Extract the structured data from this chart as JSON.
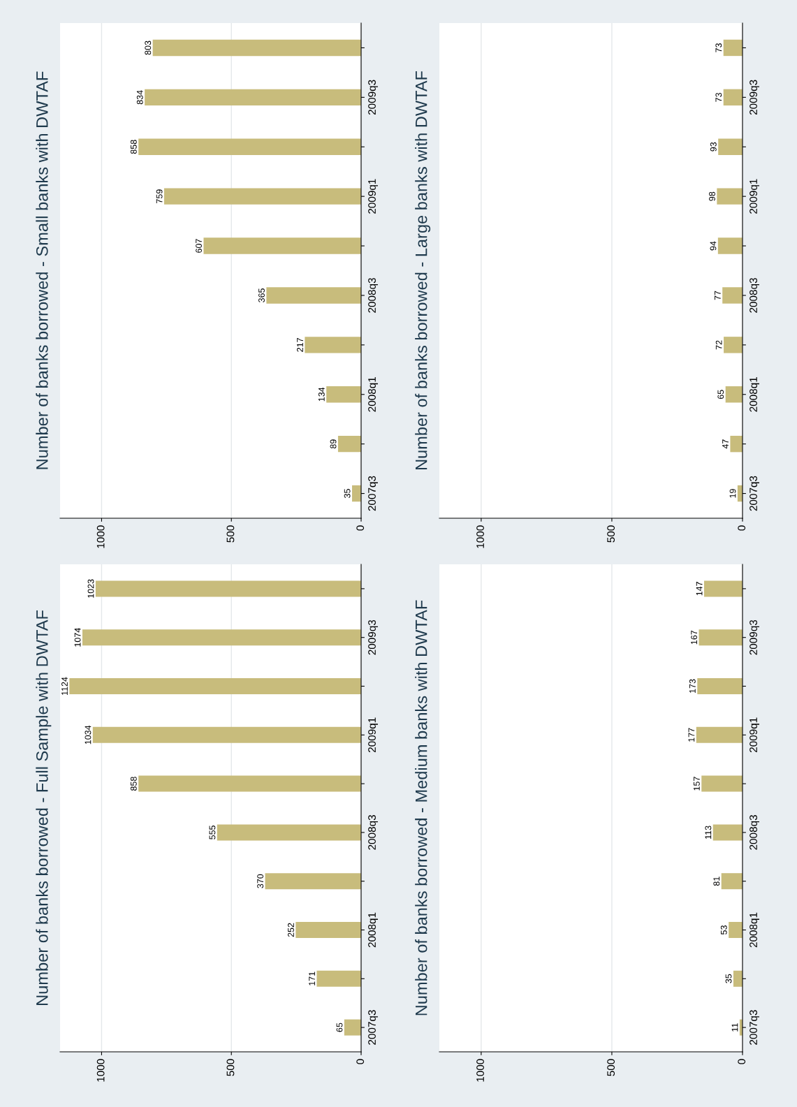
{
  "chart_data": [
    {
      "type": "bar",
      "orientation": "horizontal",
      "title": "Number of banks borrowed - Full Sample with DWTAF",
      "categories": [
        null,
        "2009q3",
        null,
        "2009q1",
        null,
        "2008q3",
        null,
        "2008q1",
        null,
        "2007q3"
      ],
      "values": [
        1023,
        1074,
        1124,
        1034,
        858,
        555,
        370,
        252,
        171,
        65
      ],
      "color": "#c8bc7c",
      "xlim": [
        1160,
        0
      ],
      "xticks": [
        0,
        500,
        1000
      ],
      "grid": "x",
      "data_labels": true
    },
    {
      "type": "bar",
      "orientation": "horizontal",
      "title": "Number of banks borrowed - Small banks with DWTAF",
      "categories": [
        null,
        "2009q3",
        null,
        "2009q1",
        null,
        "2008q3",
        null,
        "2008q1",
        null,
        "2007q3"
      ],
      "values": [
        803,
        834,
        858,
        759,
        607,
        365,
        217,
        134,
        89,
        35
      ],
      "color": "#c8bc7c",
      "xlim": [
        1160,
        0
      ],
      "xticks": [
        0,
        500,
        1000
      ],
      "grid": "x",
      "data_labels": true
    },
    {
      "type": "bar",
      "orientation": "horizontal",
      "title": "Number of banks borrowed - Medium banks with DWTAF",
      "categories": [
        null,
        "2009q3",
        null,
        "2009q1",
        null,
        "2008q3",
        null,
        "2008q1",
        null,
        "2007q3"
      ],
      "values": [
        147,
        167,
        173,
        177,
        157,
        113,
        81,
        53,
        35,
        11
      ],
      "color": "#c8bc7c",
      "xlim": [
        1160,
        0
      ],
      "xticks": [
        0,
        500,
        1000
      ],
      "grid": "x",
      "data_labels": true
    },
    {
      "type": "bar",
      "orientation": "horizontal",
      "title": "Number of banks borrowed - Large banks with DWTAF",
      "categories": [
        null,
        "2009q3",
        null,
        "2009q1",
        null,
        "2008q3",
        null,
        "2008q1",
        null,
        "2007q3"
      ],
      "values": [
        73,
        73,
        93,
        98,
        94,
        77,
        72,
        65,
        47,
        19
      ],
      "color": "#c8bc7c",
      "xlim": [
        1160,
        0
      ],
      "xticks": [
        0,
        500,
        1000
      ],
      "grid": "x",
      "data_labels": true
    }
  ]
}
